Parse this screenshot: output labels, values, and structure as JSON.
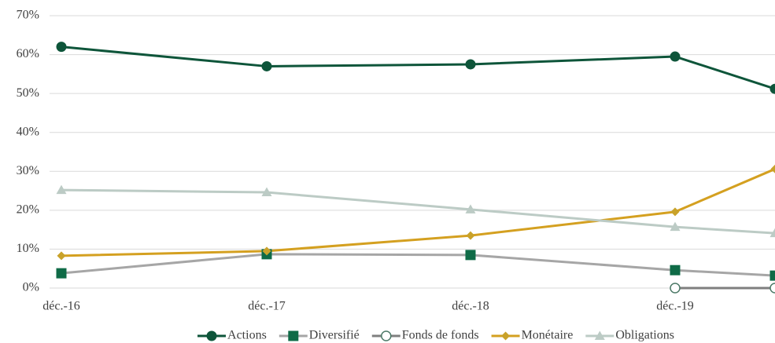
{
  "chart_data": {
    "type": "line",
    "categories": [
      "déc.-16",
      "déc.-17",
      "déc.-18",
      "déc.-19",
      null
    ],
    "series": [
      {
        "name": "Actions",
        "color": "#0e553a",
        "marker": "circle",
        "marker_color": "#0e553a",
        "values": [
          62,
          57,
          57.5,
          59.5,
          51.2
        ]
      },
      {
        "name": "Diversifié",
        "color": "#a6a6a6",
        "marker": "square",
        "marker_color": "#0f6b47",
        "values": [
          3.8,
          8.7,
          8.5,
          4.6,
          3.2
        ]
      },
      {
        "name": "Fonds de fonds",
        "color": "#7f7f7f",
        "marker": "hollow-circle",
        "marker_color": "#4d7a68",
        "values": [
          null,
          null,
          null,
          0,
          0
        ]
      },
      {
        "name": "Monétaire",
        "color": "#d4a020",
        "marker": "diamond",
        "marker_color": "#c9a22a",
        "values": [
          8.3,
          9.5,
          13.5,
          19.6,
          30.6
        ]
      },
      {
        "name": "Obligations",
        "color": "#bccbc5",
        "marker": "triangle",
        "marker_color": "#bccbc5",
        "values": [
          25.2,
          24.6,
          20.2,
          15.7,
          14.1
        ]
      }
    ],
    "ylim": [
      0,
      70
    ],
    "yticks": [
      {
        "value": 0,
        "label": "0%"
      },
      {
        "value": 10,
        "label": "10%"
      },
      {
        "value": 20,
        "label": "20%"
      },
      {
        "value": 30,
        "label": "30%"
      },
      {
        "value": 40,
        "label": "40%"
      },
      {
        "value": 50,
        "label": "50%"
      },
      {
        "value": 60,
        "label": "60%"
      },
      {
        "value": 70,
        "label": "70%"
      }
    ],
    "grid": true,
    "legend": "bottom"
  }
}
